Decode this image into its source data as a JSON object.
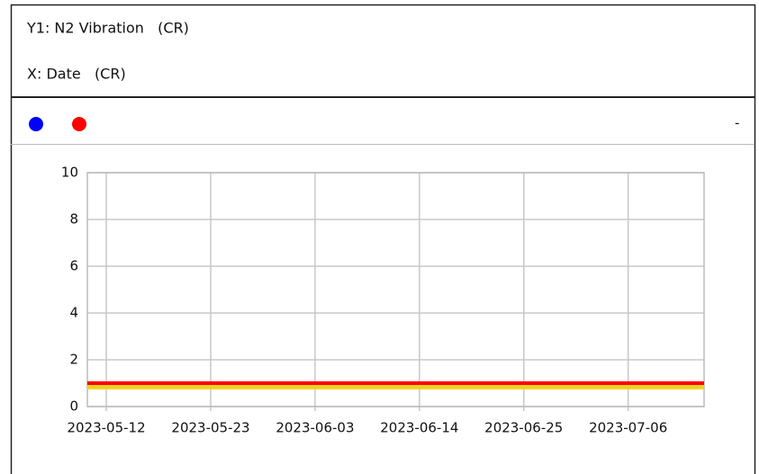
{
  "header": {
    "y_label": "Y1: N2 Vibration   (CR)",
    "x_label": "X: Date   (CR)"
  },
  "legend": {
    "markers": [
      {
        "color": "#0000ff"
      },
      {
        "color": "#ff0000"
      }
    ],
    "text": "-"
  },
  "chart_data": {
    "type": "line",
    "x": [
      "2023-05-10",
      "2023-07-14"
    ],
    "series": [
      {
        "color": "#f2d21b",
        "values": [
          0.85,
          0.85
        ]
      },
      {
        "color": "#ff0000",
        "values": [
          1,
          1
        ]
      }
    ],
    "xlim": [
      "2023-05-10",
      "2023-07-14"
    ],
    "xticks": [
      "2023-05-12",
      "2023-05-23",
      "2023-06-03",
      "2023-06-14",
      "2023-06-25",
      "2023-07-06"
    ],
    "ylim": [
      0,
      10
    ],
    "yticks": [
      0,
      2,
      4,
      6,
      8,
      10
    ],
    "grid": true
  }
}
